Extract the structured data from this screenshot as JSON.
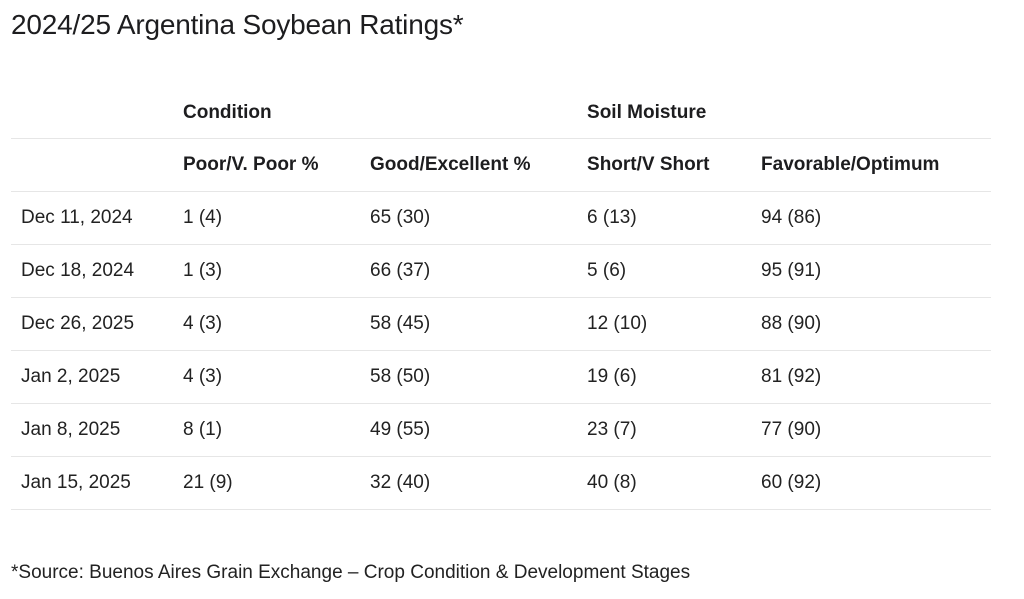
{
  "title": "2024/25 Argentina Soybean Ratings*",
  "table": {
    "group_headers": {
      "condition": "Condition",
      "soil_moisture": "Soil Moisture"
    },
    "column_headers": [
      "",
      "Poor/V. Poor %",
      "Good/Excellent %",
      "Short/V Short",
      "Favorable/Optimum"
    ],
    "rows": [
      [
        "Dec 11, 2024",
        "1 (4)",
        "65 (30)",
        "6 (13)",
        "94 (86)"
      ],
      [
        "Dec 18, 2024",
        "1 (3)",
        "66 (37)",
        "5 (6)",
        "95 (91)"
      ],
      [
        "Dec 26, 2025",
        "4 (3)",
        "58 (45)",
        "12 (10)",
        "88 (90)"
      ],
      [
        "Jan 2, 2025",
        "4 (3)",
        "58 (50)",
        "19 (6)",
        "81 (92)"
      ],
      [
        "Jan 8, 2025",
        "8 (1)",
        "49 (55)",
        "23 (7)",
        "77 (90)"
      ],
      [
        "Jan 15, 2025",
        "21 (9)",
        "32 (40)",
        "40 (8)",
        "60 (92)"
      ]
    ]
  },
  "footnote": "*Source: Buenos Aires Grain Exchange – Crop Condition & Development Stages",
  "colors": {
    "text": "#1d1d1f",
    "row_divider": "#e6e6e6",
    "background": "#ffffff"
  }
}
